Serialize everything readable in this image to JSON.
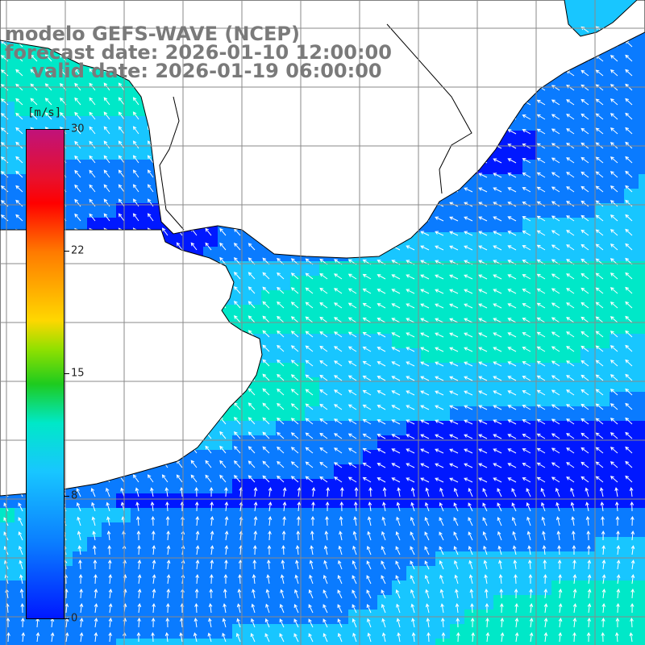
{
  "title": {
    "line1": "modelo GEFS-WAVE (NCEP)",
    "line2": "forecast date: 2026-01-10 12:00:00",
    "line3": "    valid date: 2026-01-19 06:00:00"
  },
  "colorbar": {
    "unit": "[m/s]",
    "min": 0,
    "max": 30,
    "ticks": [
      "30",
      "22",
      "15",
      "8",
      "0"
    ],
    "colors": [
      "#0018ff",
      "#0a7bff",
      "#18c6ff",
      "#00e8c8",
      "#1ecb1e",
      "#8fe000",
      "#ffd700",
      "#ff7a00",
      "#ff0000",
      "#c0127a"
    ]
  },
  "map": {
    "variable": "wind speed and direction",
    "land_color": "#ffffff",
    "grid_color": "#808080",
    "coast_color": "#000000",
    "arrow_color": "#ffffff"
  }
}
